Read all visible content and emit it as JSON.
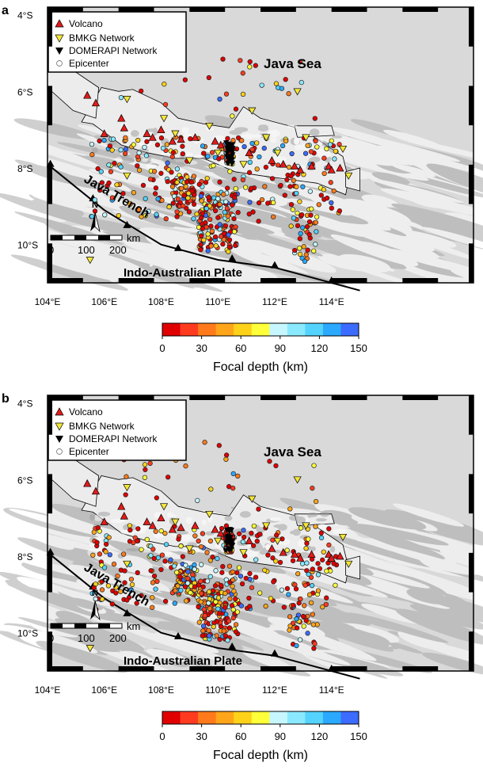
{
  "colors": {
    "volcano": "#e21b1b",
    "bmkg": "#f3e63a",
    "domerapi": "#000000",
    "epicenter_outline": "#7f7f7f",
    "trench": "#000000",
    "land": "#ececec",
    "sea": "#d9d9d9"
  },
  "depth_scale": {
    "title": "Focal depth (km)",
    "ticks": [
      "0",
      "30",
      "60",
      "90",
      "120",
      "150"
    ],
    "bins": [
      "#e00000",
      "#ff3b1f",
      "#ff7a1a",
      "#ffa51a",
      "#ffd21a",
      "#ffff3a",
      "#c6f7ff",
      "#8be9ff",
      "#55d3ff",
      "#2aa9ff",
      "#3c6bff"
    ]
  },
  "panels": [
    {
      "tag": "a",
      "legend": {
        "volcano": "Volcano",
        "bmkg": "BMKG Network",
        "domerapi": "DOMERAPI Network",
        "epicenter": "Epicenter"
      },
      "map_labels": {
        "sea": "Java Sea",
        "trench": "Java Trench",
        "plate": "Indo-Australian Plate",
        "north": "N",
        "scale_unit": "km",
        "scale_0": "0",
        "scale_100": "100",
        "scale_200": "200"
      },
      "lat_ticks": [
        "4°S",
        "6°S",
        "8°S",
        "10°S"
      ],
      "lon_ticks": [
        "104°E",
        "106°E",
        "108°E",
        "110°E",
        "112°E",
        "114°E"
      ]
    },
    {
      "tag": "b",
      "legend": {
        "volcano": "Volcano",
        "bmkg": "BMKG Network",
        "domerapi": "DOMERAPI Network",
        "epicenter": "Epicenter"
      },
      "map_labels": {
        "sea": "Java Sea",
        "trench": "Java Trench",
        "plate": "Indo-Australian Plate",
        "north": "N",
        "scale_unit": "km",
        "scale_0": "0",
        "scale_100": "100",
        "scale_200": "200"
      },
      "lat_ticks": [
        "4°S",
        "6°S",
        "8°S",
        "10°S"
      ],
      "lon_ticks": [
        "104°E",
        "106°E",
        "108°E",
        "110°E",
        "112°E",
        "114°E"
      ]
    }
  ]
}
